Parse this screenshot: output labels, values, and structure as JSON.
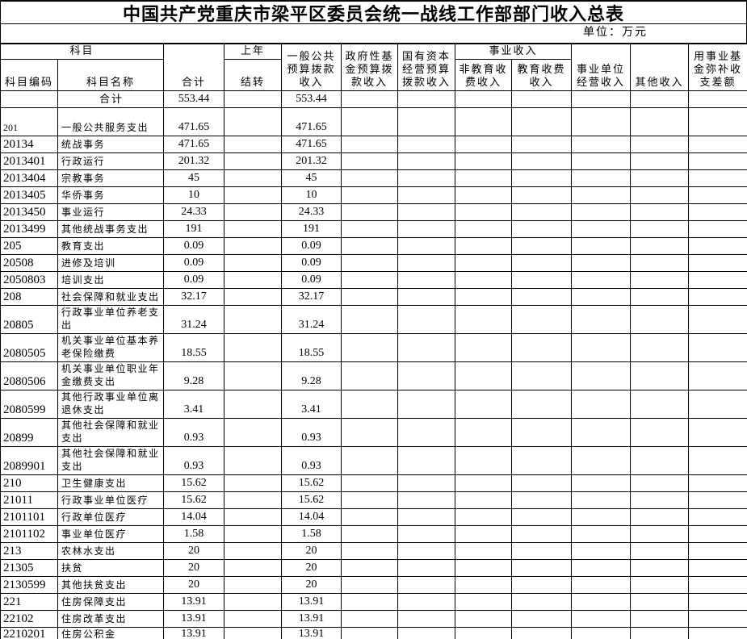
{
  "title": "中国共产党重庆市梁平区委员会统一战线工作部部门收入总表",
  "unit_note": "单位：万元",
  "header": {
    "subject_group": "科目",
    "code": "科目编码",
    "name": "科目名称",
    "total": "合计",
    "prev_year_line1": "上年",
    "prev_year_line2": "结转",
    "general_public_budget": "一般公共\n预算拨款\n收入",
    "gov_fund_budget": "政府性基\n金预算拨\n款收入",
    "state_capital_budget": "国有资本\n经营预算\n拨款收入",
    "business_income_group": "事业收入",
    "non_education_fee": "非教育收\n费收入",
    "education_fee": "教育收费\n收入",
    "business_operating": "事业单位\n经营收入",
    "other_income": "其他收入",
    "fund_balance": "用事业基\n金弥补收\n支差额"
  },
  "table": {
    "columns": [
      "code",
      "name",
      "total",
      "carryover",
      "general_public_budget",
      "gov_fund_budget",
      "state_capital_budget",
      "non_education_fee",
      "education_fee",
      "business_operating",
      "other_income",
      "fund_balance"
    ],
    "rows": [
      [
        "",
        "合计",
        "553.44",
        "",
        "553.44",
        "",
        "",
        "",
        "",
        "",
        "",
        ""
      ],
      [
        "201",
        "一般公共服务支出",
        "471.65",
        "",
        "471.65",
        "",
        "",
        "",
        "",
        "",
        "",
        ""
      ],
      [
        "20134",
        "统战事务",
        "471.65",
        "",
        "471.65",
        "",
        "",
        "",
        "",
        "",
        "",
        ""
      ],
      [
        "2013401",
        "行政运行",
        "201.32",
        "",
        "201.32",
        "",
        "",
        "",
        "",
        "",
        "",
        ""
      ],
      [
        "2013404",
        "宗教事务",
        "45",
        "",
        "45",
        "",
        "",
        "",
        "",
        "",
        "",
        ""
      ],
      [
        "2013405",
        "华侨事务",
        "10",
        "",
        "10",
        "",
        "",
        "",
        "",
        "",
        "",
        ""
      ],
      [
        "2013450",
        "事业运行",
        "24.33",
        "",
        "24.33",
        "",
        "",
        "",
        "",
        "",
        "",
        ""
      ],
      [
        "2013499",
        "其他统战事务支出",
        "191",
        "",
        "191",
        "",
        "",
        "",
        "",
        "",
        "",
        ""
      ],
      [
        "205",
        "教育支出",
        "0.09",
        "",
        "0.09",
        "",
        "",
        "",
        "",
        "",
        "",
        ""
      ],
      [
        "20508",
        "进修及培训",
        "0.09",
        "",
        "0.09",
        "",
        "",
        "",
        "",
        "",
        "",
        ""
      ],
      [
        "2050803",
        "培训支出",
        "0.09",
        "",
        "0.09",
        "",
        "",
        "",
        "",
        "",
        "",
        ""
      ],
      [
        "208",
        "社会保障和就业支出",
        "32.17",
        "",
        "32.17",
        "",
        "",
        "",
        "",
        "",
        "",
        ""
      ],
      [
        "20805",
        "行政事业单位养老支出",
        "31.24",
        "",
        "31.24",
        "",
        "",
        "",
        "",
        "",
        "",
        ""
      ],
      [
        "2080505",
        "机关事业单位基本养老保险缴费",
        "18.55",
        "",
        "18.55",
        "",
        "",
        "",
        "",
        "",
        "",
        ""
      ],
      [
        "2080506",
        "机关事业单位职业年金缴费支出",
        "9.28",
        "",
        "9.28",
        "",
        "",
        "",
        "",
        "",
        "",
        ""
      ],
      [
        "2080599",
        "其他行政事业单位离退休支出",
        "3.41",
        "",
        "3.41",
        "",
        "",
        "",
        "",
        "",
        "",
        ""
      ],
      [
        "20899",
        "其他社会保障和就业支出",
        "0.93",
        "",
        "0.93",
        "",
        "",
        "",
        "",
        "",
        "",
        ""
      ],
      [
        "2089901",
        "其他社会保障和就业支出",
        "0.93",
        "",
        "0.93",
        "",
        "",
        "",
        "",
        "",
        "",
        ""
      ],
      [
        "210",
        "卫生健康支出",
        "15.62",
        "",
        "15.62",
        "",
        "",
        "",
        "",
        "",
        "",
        ""
      ],
      [
        "21011",
        "行政事业单位医疗",
        "15.62",
        "",
        "15.62",
        "",
        "",
        "",
        "",
        "",
        "",
        ""
      ],
      [
        "2101101",
        "行政单位医疗",
        "14.04",
        "",
        "14.04",
        "",
        "",
        "",
        "",
        "",
        "",
        ""
      ],
      [
        "2101102",
        "事业单位医疗",
        "1.58",
        "",
        "1.58",
        "",
        "",
        "",
        "",
        "",
        "",
        ""
      ],
      [
        "213",
        "农林水支出",
        "20",
        "",
        "20",
        "",
        "",
        "",
        "",
        "",
        "",
        ""
      ],
      [
        "21305",
        "扶贫",
        "20",
        "",
        "20",
        "",
        "",
        "",
        "",
        "",
        "",
        ""
      ],
      [
        "2130599",
        "其他扶贫支出",
        "20",
        "",
        "20",
        "",
        "",
        "",
        "",
        "",
        "",
        ""
      ],
      [
        "221",
        "住房保障支出",
        "13.91",
        "",
        "13.91",
        "",
        "",
        "",
        "",
        "",
        "",
        ""
      ],
      [
        "22102",
        "住房改革支出",
        "13.91",
        "",
        "13.91",
        "",
        "",
        "",
        "",
        "",
        "",
        ""
      ],
      [
        "2210201",
        "住房公积金",
        "13.91",
        "",
        "13.91",
        "",
        "",
        "",
        "",
        "",
        "",
        ""
      ]
    ]
  }
}
